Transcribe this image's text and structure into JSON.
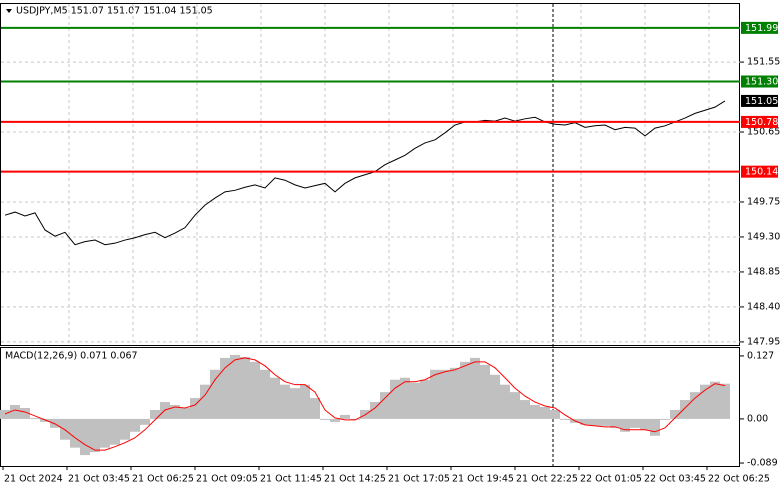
{
  "chart_data": [
    {
      "type": "line",
      "title": "USDJPY,M5  151.07 151.07 151.04 151.05",
      "series": [
        {
          "color": "#000000",
          "values": [
            149.58,
            149.62,
            149.57,
            149.61,
            149.39,
            149.31,
            149.36,
            149.2,
            149.24,
            149.26,
            149.2,
            149.22,
            149.26,
            149.29,
            149.33,
            149.36,
            149.29,
            149.35,
            149.42,
            149.58,
            149.71,
            149.8,
            149.88,
            149.9,
            149.94,
            149.97,
            149.93,
            150.06,
            150.03,
            149.97,
            149.93,
            149.96,
            149.99,
            149.88,
            149.99,
            150.06,
            150.1,
            150.14,
            150.23,
            150.29,
            150.35,
            150.44,
            150.51,
            150.55,
            150.64,
            150.74,
            150.78,
            150.78,
            150.8,
            150.79,
            150.83,
            150.79,
            150.82,
            150.84,
            150.78,
            150.75,
            150.74,
            150.77,
            150.71,
            150.73,
            150.74,
            150.68,
            150.71,
            150.7,
            150.6,
            150.7,
            150.73,
            150.78,
            150.83,
            150.89,
            150.93,
            150.97,
            151.05
          ]
        }
      ],
      "ylim": [
        147.91,
        152.31
      ],
      "yticks": [
        147.95,
        {
          "value": 148.4,
          "label": "148.40"
        },
        148.85,
        {
          "value": 149.3,
          "label": "149.30"
        },
        149.75,
        150.65,
        151.55
      ],
      "grid": true,
      "levels": [
        {
          "value": 151.99,
          "color": "#008000"
        },
        {
          "value": 151.3,
          "label": "151.30",
          "color": "#008000"
        },
        {
          "value": 150.78,
          "color": "#ff0000"
        },
        {
          "value": 150.14,
          "color": "#ff0000"
        }
      ],
      "last_price": {
        "value": 151.05,
        "color": "#000000"
      }
    },
    {
      "type": "macd",
      "title": "MACD(12,26,9) 0.071 0.067",
      "series": [
        {
          "type": "bar",
          "color": "#c0c0c0",
          "values": [
            0.018,
            0.028,
            0.022,
            0.002,
            -0.006,
            -0.018,
            -0.042,
            -0.058,
            -0.073,
            -0.067,
            -0.058,
            -0.052,
            -0.042,
            -0.026,
            -0.012,
            0.018,
            0.034,
            0.028,
            0.022,
            0.042,
            0.069,
            0.099,
            0.123,
            0.129,
            0.125,
            0.115,
            0.099,
            0.083,
            0.069,
            0.062,
            0.069,
            0.042,
            -0.002,
            -0.006,
            0.008,
            -0.002,
            0.018,
            0.034,
            0.054,
            0.079,
            0.083,
            0.073,
            0.079,
            0.099,
            0.099,
            0.103,
            0.115,
            0.123,
            0.109,
            0.089,
            0.069,
            0.054,
            0.038,
            0.028,
            0.024,
            0.018,
            -0.002,
            -0.008,
            -0.012,
            -0.014,
            -0.014,
            -0.018,
            -0.026,
            -0.018,
            -0.022,
            -0.034,
            -0.002,
            0.018,
            0.038,
            0.054,
            0.069,
            0.075,
            0.071
          ]
        },
        {
          "type": "line",
          "color": "#ff0000",
          "values": [
            0.01,
            0.018,
            0.014,
            0.006,
            -0.002,
            -0.01,
            -0.022,
            -0.038,
            -0.052,
            -0.063,
            -0.063,
            -0.056,
            -0.048,
            -0.038,
            -0.022,
            -0.002,
            0.018,
            0.024,
            0.022,
            0.028,
            0.048,
            0.079,
            0.103,
            0.119,
            0.123,
            0.119,
            0.107,
            0.089,
            0.075,
            0.069,
            0.069,
            0.054,
            0.018,
            0.002,
            -0.002,
            -0.002,
            0.008,
            0.022,
            0.042,
            0.062,
            0.075,
            0.075,
            0.079,
            0.089,
            0.095,
            0.099,
            0.107,
            0.115,
            0.115,
            0.103,
            0.083,
            0.062,
            0.046,
            0.034,
            0.026,
            0.022,
            0.008,
            -0.004,
            -0.012,
            -0.014,
            -0.016,
            -0.016,
            -0.022,
            -0.022,
            -0.022,
            -0.026,
            -0.018,
            0.002,
            0.022,
            0.042,
            0.058,
            0.071,
            0.067
          ]
        }
      ],
      "ylim": [
        -0.095,
        0.145
      ],
      "yticks": [
        0.127,
        {
          "value": 0,
          "label": "0.00"
        },
        -0.089
      ],
      "x_labels": [
        "21 Oct 2024",
        "21 Oct 03:45",
        "21 Oct 06:25",
        "21 Oct 09:05",
        "21 Oct 11:45",
        "21 Oct 14:25",
        "21 Oct 17:05",
        "21 Oct 19:45",
        "21 Oct 22:25",
        "22 Oct 01:05",
        "22 Oct 03:45",
        "22 Oct 06:25"
      ]
    }
  ]
}
